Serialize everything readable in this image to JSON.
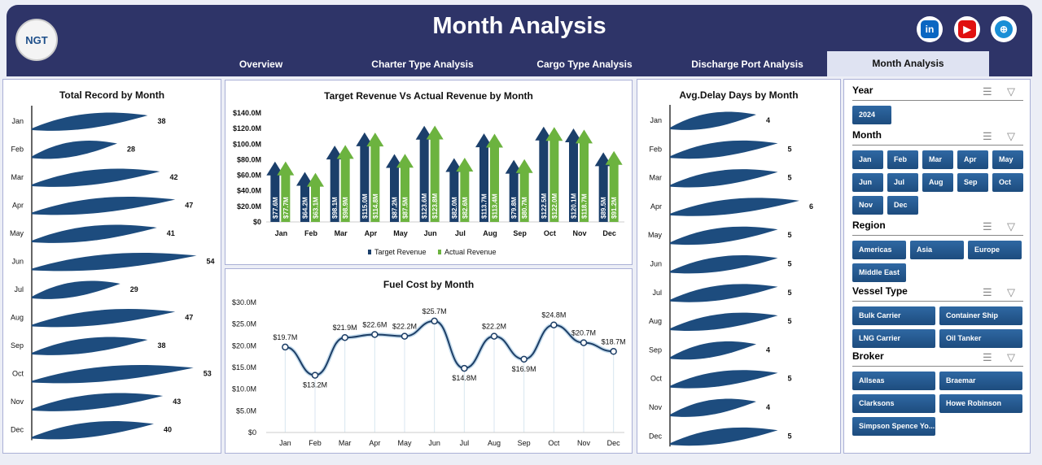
{
  "header": {
    "title": "Month Analysis",
    "logo_text": "NGT",
    "social": [
      "linkedin-icon",
      "youtube-icon",
      "globe-icon"
    ]
  },
  "tabs": [
    {
      "label": "Overview"
    },
    {
      "label": "Charter Type Analysis"
    },
    {
      "label": "Cargo Type Analysis"
    },
    {
      "label": "Discharge Port Analysis"
    },
    {
      "label": "Month Analysis",
      "active": true
    }
  ],
  "colors": {
    "navy": "#2e3468",
    "target": "#1b3f6b",
    "actual": "#6cb33f",
    "wave": "#1d4c7e"
  },
  "chart_data": [
    {
      "type": "bar",
      "title": "Total Record by Month",
      "categories": [
        "Jan",
        "Feb",
        "Mar",
        "Apr",
        "May",
        "Jun",
        "Jul",
        "Aug",
        "Sep",
        "Oct",
        "Nov",
        "Dec"
      ],
      "values": [
        38,
        28,
        42,
        47,
        41,
        54,
        29,
        47,
        38,
        53,
        43,
        40
      ],
      "orientation": "horizontal"
    },
    {
      "type": "bar",
      "title": "Target Revenue Vs Actual Revenue by Month",
      "categories": [
        "Jan",
        "Feb",
        "Mar",
        "Apr",
        "May",
        "Jun",
        "Jul",
        "Aug",
        "Sep",
        "Oct",
        "Nov",
        "Dec"
      ],
      "ylim": [
        0,
        140
      ],
      "yticks": [
        "$0",
        "$20.0M",
        "$40.0M",
        "$60.0M",
        "$80.0M",
        "$100.0M",
        "$120.0M",
        "$140.0M"
      ],
      "series": [
        {
          "name": "Target Revenue",
          "values": [
            77.6,
            64.2,
            98.1,
            115.0,
            87.2,
            123.6,
            82.0,
            113.7,
            79.8,
            122.5,
            120.1,
            89.5
          ],
          "labels": [
            "$77.6M",
            "$64.2M",
            "$98.1M",
            "$115.0M",
            "$87.2M",
            "$123.6M",
            "$82.0M",
            "$113.7M",
            "$79.8M",
            "$122.5M",
            "$120.1M",
            "$89.5M"
          ]
        },
        {
          "name": "Actual Revenue",
          "values": [
            77.7,
            63.1,
            98.9,
            114.8,
            87.5,
            123.8,
            82.6,
            113.4,
            80.7,
            122.0,
            118.7,
            91.2
          ],
          "labels": [
            "$77.7M",
            "$63.1M",
            "$98.9M",
            "$114.8M",
            "$87.5M",
            "$123.8M",
            "$82.6M",
            "$113.4M",
            "$80.7M",
            "$122.0M",
            "$118.7M",
            "$91.2M"
          ]
        }
      ],
      "legend": "bottom"
    },
    {
      "type": "line",
      "title": "Fuel Cost by Month",
      "categories": [
        "Jan",
        "Feb",
        "Mar",
        "Apr",
        "May",
        "Jun",
        "Jul",
        "Aug",
        "Sep",
        "Oct",
        "Nov",
        "Dec"
      ],
      "ylim": [
        0,
        30
      ],
      "yticks": [
        "$0",
        "$5.0M",
        "$10.0M",
        "$15.0M",
        "$20.0M",
        "$25.0M",
        "$30.0M"
      ],
      "values": [
        19.7,
        13.2,
        21.9,
        22.6,
        22.2,
        25.7,
        14.8,
        22.2,
        16.9,
        24.8,
        20.7,
        18.7
      ],
      "labels": [
        "$19.7M",
        "$13.2M",
        "$21.9M",
        "$22.6M",
        "$22.2M",
        "$25.7M",
        "$14.8M",
        "$22.2M",
        "$16.9M",
        "$24.8M",
        "$20.7M",
        "$18.7M"
      ]
    },
    {
      "type": "bar",
      "title": "Avg.Delay Days by Month",
      "categories": [
        "Jan",
        "Feb",
        "Mar",
        "Apr",
        "May",
        "Jun",
        "Jul",
        "Aug",
        "Sep",
        "Oct",
        "Nov",
        "Dec"
      ],
      "values": [
        4,
        5,
        5,
        6,
        5,
        5,
        5,
        5,
        4,
        5,
        4,
        5
      ],
      "orientation": "horizontal"
    }
  ],
  "slicers": [
    {
      "title": "Year",
      "items": [
        "2024"
      ]
    },
    {
      "title": "Month",
      "items": [
        "Jan",
        "Feb",
        "Mar",
        "Apr",
        "May",
        "Jun",
        "Jul",
        "Aug",
        "Sep",
        "Oct",
        "Nov",
        "Dec"
      ]
    },
    {
      "title": "Region",
      "items": [
        "Americas",
        "Asia",
        "Europe",
        "Middle East"
      ]
    },
    {
      "title": "Vessel Type",
      "items": [
        "Bulk Carrier",
        "Container Ship",
        "LNG Carrier",
        "Oil Tanker"
      ]
    },
    {
      "title": "Broker",
      "items": [
        "Allseas",
        "Braemar",
        "Clarksons",
        "Howe Robinson",
        "Simpson Spence Yo..."
      ]
    }
  ]
}
